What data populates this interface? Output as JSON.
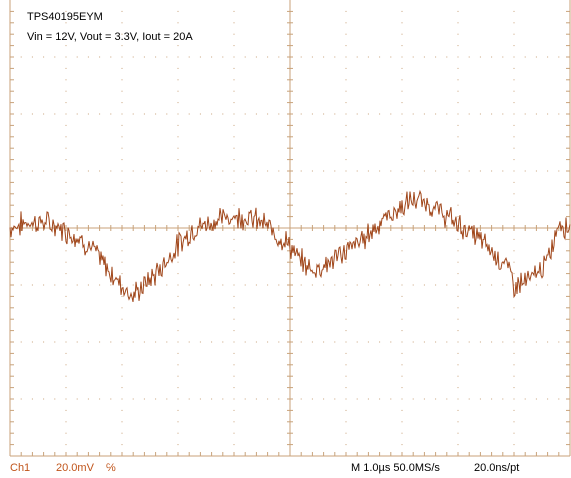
{
  "annotations": {
    "line1": "TPS40195EYM",
    "line2": "Vin = 12V, Vout = 3.3V, Iout = 20A"
  },
  "status_bar": {
    "channel": "Ch1",
    "scale": "20.0mV",
    "coupling_symbol": "℅",
    "timebase": "M 1.0µs 50.0MS/s",
    "resolution": "20.0ns/pt"
  },
  "colors": {
    "grid": "#c8a27a",
    "trace": "#a0461a",
    "channel_text": "#c0541a"
  },
  "chart_data": {
    "type": "line",
    "title": "",
    "xlabel": "",
    "ylabel": "",
    "grid": true,
    "divisions": {
      "x": 10,
      "y": 8
    },
    "x_unit": "us",
    "y_unit": "mV",
    "xlim": [
      0,
      10
    ],
    "ylim": [
      -80,
      80
    ],
    "series": [
      {
        "x": [
          0,
          0.3,
          0.6,
          0.9,
          1.2,
          1.5,
          1.8,
          2.1,
          2.2,
          2.4,
          2.7,
          3.0,
          3.3,
          3.6,
          3.9,
          4.2,
          4.5,
          4.8,
          5.0,
          5.1,
          5.4,
          5.7,
          6.0,
          6.3,
          6.6,
          6.9,
          7.2,
          7.5,
          7.8,
          8.1,
          8.4,
          8.7,
          8.9,
          9.0,
          9.3,
          9.6,
          9.8,
          10.0
        ],
        "y": [
          0,
          2,
          2,
          0,
          -3,
          -8,
          -16,
          -22,
          -24,
          -20,
          -14,
          -6,
          0,
          2,
          4,
          4,
          2,
          -3,
          -6,
          -10,
          -15,
          -12,
          -8,
          -4,
          2,
          6,
          10,
          8,
          4,
          0,
          -4,
          -10,
          -14,
          -20,
          -18,
          -12,
          2,
          0
        ]
      }
    ]
  }
}
